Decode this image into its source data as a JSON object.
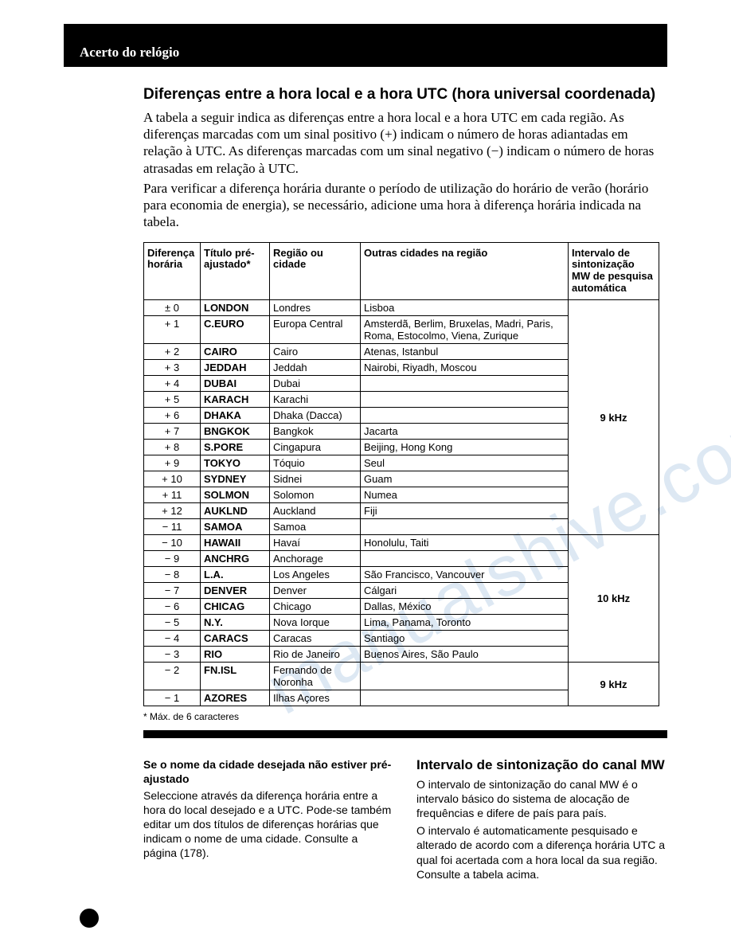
{
  "header": {
    "title": "Acerto do relógio"
  },
  "main": {
    "title": "Diferenças entre a hora local e a hora UTC (hora universal coordenada)",
    "para1": "A tabela a seguir indica as diferenças entre a hora local e a hora UTC em cada região.  As diferenças marcadas com um sinal positivo (+) indicam o número de horas adiantadas em relação à UTC.  As diferenças marcadas com um sinal negativo (−) indicam o número de horas atrasadas em relação à UTC.",
    "para2": "Para verificar a diferença horária durante o período de utilização do horário de verão (horário para economia de energia), se necessário, adicione uma hora à diferença horária indicada na tabela."
  },
  "table": {
    "headers": [
      "Diferença horária",
      "Título pré-ajustado*",
      "Região ou cidade",
      "Outras cidades na região",
      "Intervalo de sintonização MW de pesquisa automática"
    ],
    "groups": [
      {
        "mw": "9 kHz",
        "rows": [
          {
            "diff": "± 0",
            "title": "LONDON",
            "region": "Londres",
            "other": "Lisboa"
          },
          {
            "diff": "+ 1",
            "title": "C.EURO",
            "region": "Europa Central",
            "other": "Amsterdã, Berlim, Bruxelas, Madri, Paris, Roma, Estocolmo, Viena, Zurique"
          },
          {
            "diff": "+ 2",
            "title": "CAIRO",
            "region": "Cairo",
            "other": "Atenas, Istanbul"
          },
          {
            "diff": "+ 3",
            "title": "JEDDAH",
            "region": "Jeddah",
            "other": "Nairobi, Riyadh, Moscou"
          },
          {
            "diff": "+ 4",
            "title": "DUBAI",
            "region": "Dubai",
            "other": ""
          },
          {
            "diff": "+ 5",
            "title": "KARACH",
            "region": "Karachi",
            "other": ""
          },
          {
            "diff": "+ 6",
            "title": "DHAKA",
            "region": "Dhaka (Dacca)",
            "other": ""
          },
          {
            "diff": "+ 7",
            "title": "BNGKOK",
            "region": "Bangkok",
            "other": "Jacarta"
          },
          {
            "diff": "+ 8",
            "title": "S.PORE",
            "region": "Cingapura",
            "other": "Beijing, Hong Kong"
          },
          {
            "diff": "+ 9",
            "title": "TOKYO",
            "region": "Tóquio",
            "other": "Seul"
          },
          {
            "diff": "+ 10",
            "title": "SYDNEY",
            "region": "Sidnei",
            "other": "Guam"
          },
          {
            "diff": "+ 11",
            "title": "SOLMON",
            "region": "Solomon",
            "other": "Numea"
          },
          {
            "diff": "+ 12",
            "title": "AUKLND",
            "region": "Auckland",
            "other": "Fiji"
          },
          {
            "diff": "− 11",
            "title": "SAMOA",
            "region": "Samoa",
            "other": ""
          }
        ]
      },
      {
        "mw": "10 kHz",
        "rows": [
          {
            "diff": "− 10",
            "title": "HAWAII",
            "region": "Havaí",
            "other": "Honolulu, Taiti"
          },
          {
            "diff": "− 9",
            "title": "ANCHRG",
            "region": "Anchorage",
            "other": ""
          },
          {
            "diff": "− 8",
            "title": "L.A.",
            "region": "Los Angeles",
            "other": "São Francisco, Vancouver"
          },
          {
            "diff": "− 7",
            "title": "DENVER",
            "region": "Denver",
            "other": "Cálgari"
          },
          {
            "diff": "− 6",
            "title": "CHICAG",
            "region": "Chicago",
            "other": "Dallas, México"
          },
          {
            "diff": "− 5",
            "title": "N.Y.",
            "region": "Nova Iorque",
            "other": "Lima, Panama, Toronto"
          },
          {
            "diff": "− 4",
            "title": "CARACS",
            "region": "Caracas",
            "other": "Santiago"
          },
          {
            "diff": "− 3",
            "title": "RIO",
            "region": "Rio de Janeiro",
            "other": "Buenos Aires, São Paulo"
          }
        ]
      },
      {
        "mw": "9 kHz",
        "rows": [
          {
            "diff": "− 2",
            "title": "FN.ISL",
            "region": "Fernando de Noronha",
            "other": ""
          },
          {
            "diff": "− 1",
            "title": "AZORES",
            "region": "Ilhas Açores",
            "other": ""
          }
        ]
      }
    ],
    "footnote": "* Máx. de 6 caracteres"
  },
  "bottom": {
    "left_title": "Se o nome da cidade desejada não estiver pré-ajustado",
    "left_body": "Seleccione através da diferença horária entre a hora do local desejado e a UTC. Pode-se também editar um dos títulos de diferenças horárias que indicam o nome de uma cidade.  Consulte a página (178).",
    "right_title": "Intervalo de sintonização do canal MW",
    "right_p1": "O intervalo de sintonização do canal MW é o intervalo básico do sistema de alocação de frequências e difere de país para país.",
    "right_p2": "O intervalo é automaticamente pesquisado e alterado de acordo com a diferença horária UTC a qual foi acertada com a hora local da sua região. Consulte a tabela acima."
  },
  "watermark": "manualshive.com",
  "style": {
    "black": "#000000",
    "white": "#ffffff",
    "watermark_color": "#bcd3e8",
    "body_fontsize": 17,
    "table_fontsize": 13,
    "small_fontsize": 14,
    "footnote_fontsize": 12
  }
}
